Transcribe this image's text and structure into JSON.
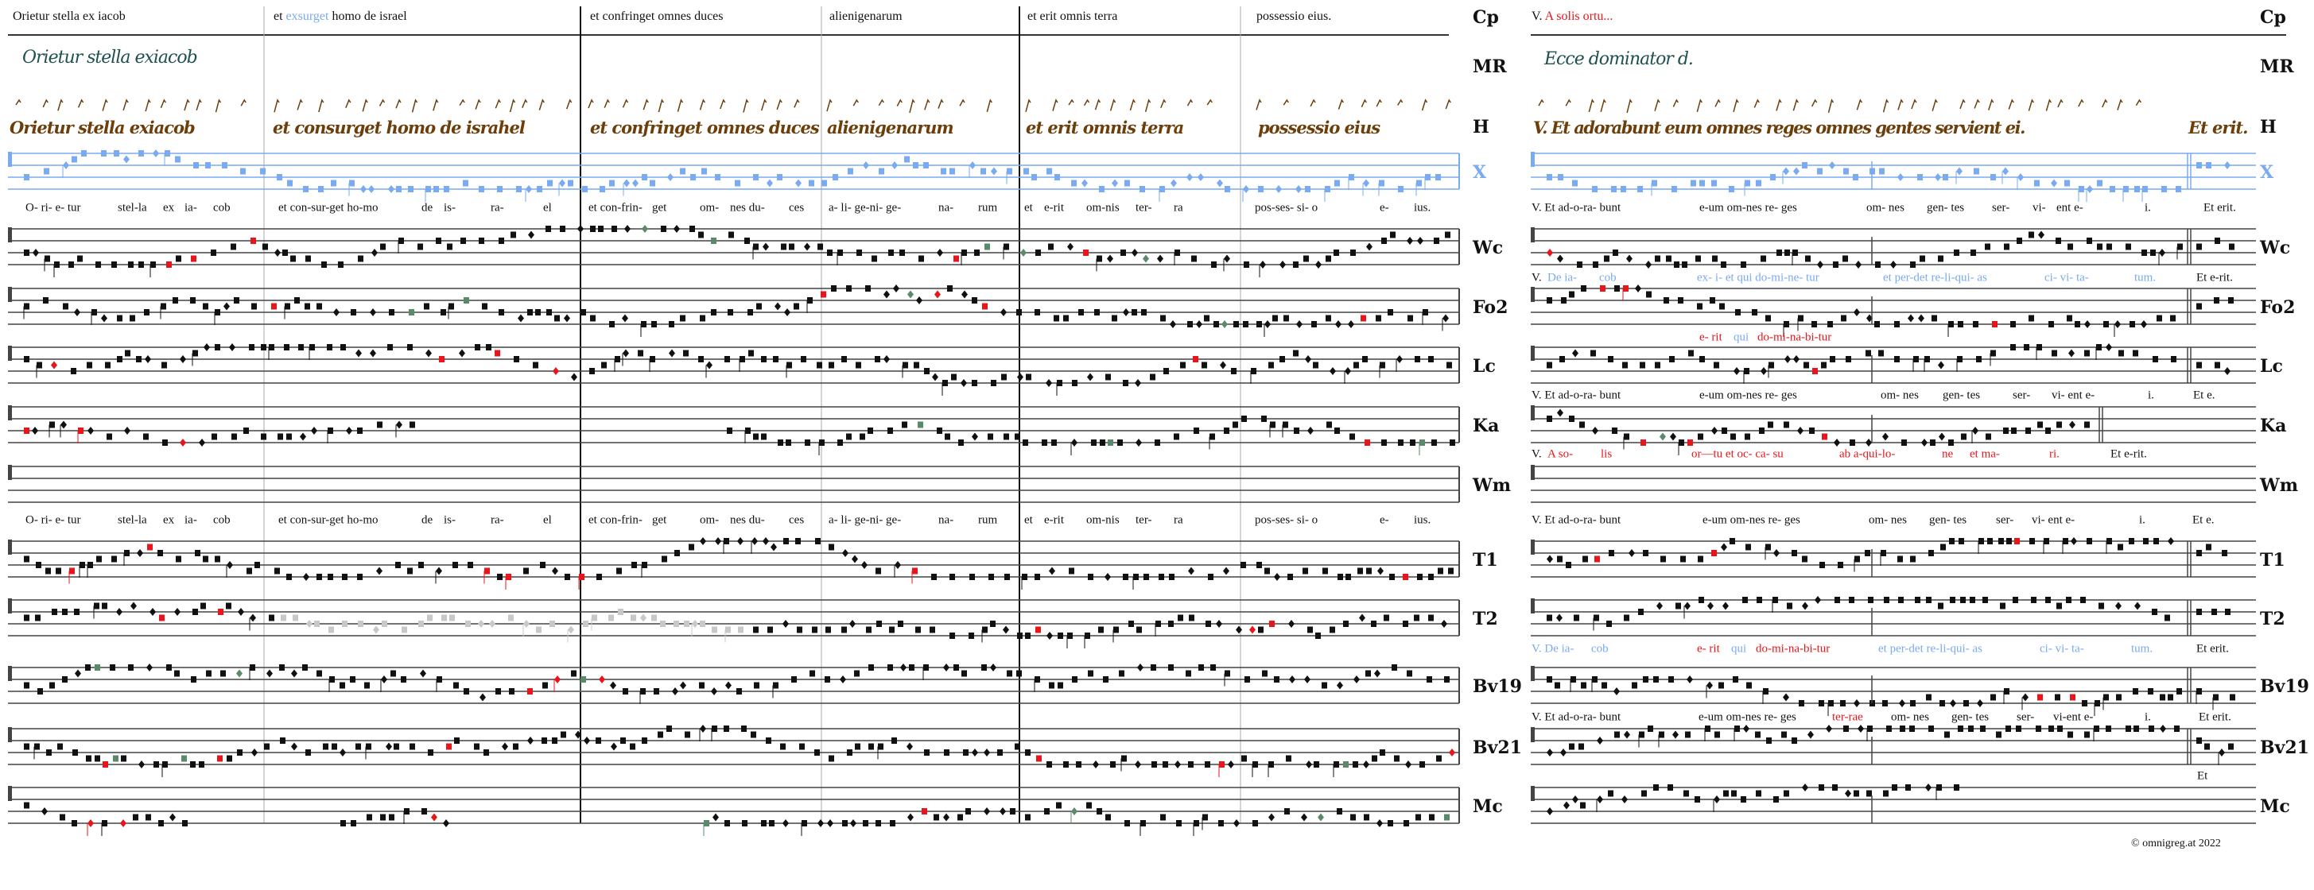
{
  "left_header": [
    {
      "parts": [
        {
          "text": "Orietur stella ex iacob",
          "color": "black"
        }
      ]
    },
    {
      "parts": [
        {
          "text": "et ",
          "color": "black"
        },
        {
          "text": "exsurget",
          "color": "blue"
        },
        {
          "text": " homo de israel",
          "color": "black"
        }
      ]
    },
    {
      "parts": [
        {
          "text": "et confringet omnes duces",
          "color": "black"
        }
      ]
    },
    {
      "parts": [
        {
          "text": "alienigenarum",
          "color": "black"
        }
      ]
    },
    {
      "parts": [
        {
          "text": "et erit omnis terra",
          "color": "black"
        }
      ]
    },
    {
      "parts": [
        {
          "text": "possessio eius.",
          "color": "black"
        }
      ]
    }
  ],
  "right_header": {
    "parts": [
      {
        "text": "V. ",
        "color": "black"
      },
      {
        "text": "A solis ortu...",
        "color": "red"
      }
    ]
  },
  "row_labels": [
    "Cp",
    "MR",
    "H",
    "X",
    "Wc",
    "Fo2",
    "Lc",
    "Ka",
    "Wm",
    "T1",
    "T2",
    "Bv19",
    "Bv21",
    "Mc"
  ],
  "manuscript": {
    "mr_left": "Orietur stella exiacob",
    "mr_right": "Ecce dominator d.",
    "h_left": [
      "Orietur stella exiacob",
      "et consurget homo de israhel",
      "et confringet omnes duces",
      "alienigenarum",
      "et erit omnis terra",
      "possessio eius"
    ],
    "h_right": [
      "V. Et adorabunt eum omnes reges omnes gentes servient ei.",
      "Et erit."
    ]
  },
  "left_lyrics": [
    "O- ri- e- tur",
    "stel-la",
    "ex",
    "ia-",
    "cob",
    "et con-sur-get ho-mo",
    "de",
    "is-",
    "ra-",
    "el",
    "et con-frin-",
    "get",
    "om-",
    "nes du-",
    "ces",
    "a- li- ge-ni- ge-",
    "na-",
    "rum",
    "et",
    "e-rit",
    "om-nis",
    "ter-",
    "ra",
    "pos-ses- si- o",
    "e-",
    "ius."
  ],
  "right_lyrics": [
    {
      "row": "Wc",
      "segments": [
        {
          "text": "V. Et ad-o-ra- bunt",
          "color": "black"
        },
        {
          "text": "e-um  om-nes re- ges",
          "color": "black"
        },
        {
          "text": "om- nes",
          "color": "black"
        },
        {
          "text": "gen- tes",
          "color": "black"
        },
        {
          "text": "ser-",
          "color": "black"
        },
        {
          "text": "vi-",
          "color": "black"
        },
        {
          "text": "ent e-",
          "color": "black"
        },
        {
          "text": "i.",
          "color": "black"
        },
        {
          "text": "Et erit.",
          "color": "black"
        }
      ]
    },
    {
      "row": "Fo2",
      "segments": [
        {
          "text": "V.",
          "color": "black"
        },
        {
          "text": "De ia-",
          "color": "blue"
        },
        {
          "text": "cob",
          "color": "blue"
        },
        {
          "text": "ex- i- et qui do-mi-ne- tur",
          "color": "blue"
        },
        {
          "text": "et per-det re-li-qui- as",
          "color": "blue"
        },
        {
          "text": "ci- vi- ta-",
          "color": "blue"
        },
        {
          "text": "tum.",
          "color": "blue"
        },
        {
          "text": "Et e-rit.",
          "color": "black"
        }
      ]
    },
    {
      "row": "Lc",
      "segments": [
        {
          "text": "e- rit",
          "color": "red"
        },
        {
          "text": "qui",
          "color": "blue"
        },
        {
          "text": "do-mi-na-bi-tur",
          "color": "red"
        }
      ]
    },
    {
      "row": "Ka",
      "segments": [
        {
          "text": "V. Et ad-o-ra- bunt",
          "color": "black"
        },
        {
          "text": "e-um  om-nes re- ges",
          "color": "black"
        },
        {
          "text": "om- nes",
          "color": "black"
        },
        {
          "text": "gen- tes",
          "color": "black"
        },
        {
          "text": "ser-",
          "color": "black"
        },
        {
          "text": "vi-  ent e-",
          "color": "black"
        },
        {
          "text": "i.",
          "color": "black"
        },
        {
          "text": "Et e.",
          "color": "black"
        }
      ]
    },
    {
      "row": "Wm",
      "segments": [
        {
          "text": "V.",
          "color": "black"
        },
        {
          "text": "A so-",
          "color": "red"
        },
        {
          "text": "lis",
          "color": "red"
        },
        {
          "text": "or—tu et oc-  ca-  su",
          "color": "red"
        },
        {
          "text": "ab a-qui-lo-",
          "color": "red"
        },
        {
          "text": "ne",
          "color": "red"
        },
        {
          "text": "et ma-",
          "color": "red"
        },
        {
          "text": "ri.",
          "color": "red"
        },
        {
          "text": "Et e-rit.",
          "color": "black"
        }
      ]
    },
    {
      "row": "T1",
      "segments": [
        {
          "text": "V. Et ad-o-ra- bunt",
          "color": "black"
        },
        {
          "text": "e-um  om-nes re- ges",
          "color": "black"
        },
        {
          "text": "om- nes",
          "color": "black"
        },
        {
          "text": "gen- tes",
          "color": "black"
        },
        {
          "text": "ser-",
          "color": "black"
        },
        {
          "text": "vi-  ent e-",
          "color": "black"
        },
        {
          "text": "i.",
          "color": "black"
        },
        {
          "text": "Et e.",
          "color": "black"
        }
      ]
    },
    {
      "row": "Bv19",
      "segments": [
        {
          "text": "V. De ia-",
          "color": "blue"
        },
        {
          "text": "cob",
          "color": "blue"
        },
        {
          "text": "e- rit",
          "color": "red"
        },
        {
          "text": "qui",
          "color": "blue"
        },
        {
          "text": "do-mi-na-bi-tur",
          "color": "red"
        },
        {
          "text": "et per-det re-li-qui- as",
          "color": "blue"
        },
        {
          "text": "ci- vi- ta-",
          "color": "blue"
        },
        {
          "text": "tum.",
          "color": "blue"
        },
        {
          "text": "Et erit.",
          "color": "black"
        }
      ]
    },
    {
      "row": "Bv21",
      "segments": [
        {
          "text": "V. Et ad-o-ra- bunt",
          "color": "black"
        },
        {
          "text": "e-um  om-nes re- ges",
          "color": "black"
        },
        {
          "text": "ter-rae",
          "color": "red"
        },
        {
          "text": "om- nes",
          "color": "black"
        },
        {
          "text": "gen- tes",
          "color": "black"
        },
        {
          "text": "ser-",
          "color": "black"
        },
        {
          "text": "vi-ent e-",
          "color": "black"
        },
        {
          "text": "i.",
          "color": "black"
        },
        {
          "text": "Et erit.",
          "color": "black"
        }
      ]
    },
    {
      "row": "Mc",
      "segments": [
        {
          "text": "Et",
          "color": "black"
        }
      ]
    }
  ],
  "footer": {
    "copyright": "©  omnigreg.at   2022"
  },
  "colors": {
    "black": "#111111",
    "red": "#e8161b",
    "blue": "#7aaaf0",
    "green": "#5a8a6a",
    "gray": "#c8c8c8",
    "brown": "#6b3e0a",
    "teal": "#1f5050",
    "staff": "#444444"
  }
}
